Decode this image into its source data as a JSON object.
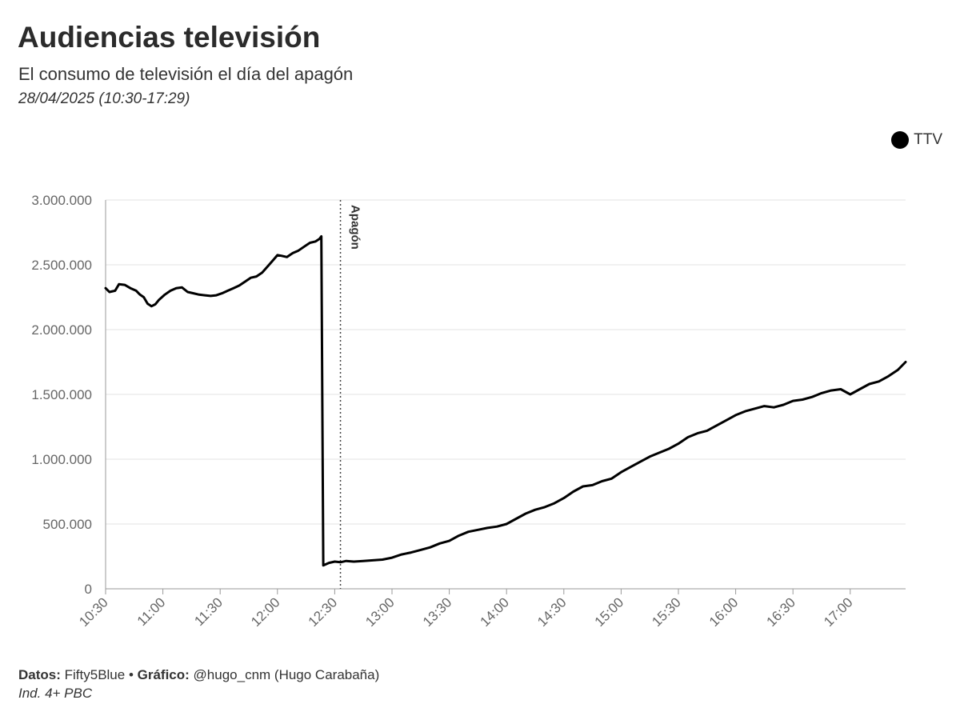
{
  "header": {
    "title": "Audiencias televisión",
    "subtitle": "El consumo de televisión el día del apagón",
    "date": "28/04/2025 (10:30-17:29)"
  },
  "legend": {
    "label": "TTV",
    "color": "#000000"
  },
  "footer": {
    "datos_label": "Datos:",
    "datos_value": " Fifty5Blue • ",
    "grafico_label": "Gráfico:",
    "grafico_value": " @hugo_cnm (Hugo Carabaña)",
    "note": "Ind. 4+ PBC"
  },
  "chart_data": {
    "type": "line",
    "title": "Audiencias televisión",
    "xlabel": "",
    "ylabel": "",
    "x_ticks": [
      "10:30",
      "11:00",
      "11:30",
      "12:00",
      "12:30",
      "13:00",
      "13:30",
      "14:00",
      "14:30",
      "15:00",
      "15:30",
      "16:00",
      "16:30",
      "17:00"
    ],
    "y_ticks": [
      "0",
      "500.000",
      "1.000.000",
      "1.500.000",
      "2.000.000",
      "2.500.000",
      "3.000.000"
    ],
    "xlim": [
      "10:30",
      "17:29"
    ],
    "ylim": [
      0,
      3000000
    ],
    "grid": "horizontal",
    "legend_position": "top-right",
    "annotation": {
      "label": "Apagón",
      "x": "12:33"
    },
    "series": [
      {
        "name": "TTV",
        "color": "#000000",
        "points": [
          [
            "10:30",
            2320000
          ],
          [
            "10:32",
            2290000
          ],
          [
            "10:35",
            2300000
          ],
          [
            "10:37",
            2350000
          ],
          [
            "10:40",
            2345000
          ],
          [
            "10:43",
            2320000
          ],
          [
            "10:46",
            2300000
          ],
          [
            "10:48",
            2270000
          ],
          [
            "10:50",
            2250000
          ],
          [
            "10:52",
            2200000
          ],
          [
            "10:54",
            2180000
          ],
          [
            "10:56",
            2195000
          ],
          [
            "10:58",
            2230000
          ],
          [
            "11:01",
            2270000
          ],
          [
            "11:04",
            2300000
          ],
          [
            "11:07",
            2320000
          ],
          [
            "11:10",
            2325000
          ],
          [
            "11:13",
            2290000
          ],
          [
            "11:16",
            2280000
          ],
          [
            "11:19",
            2270000
          ],
          [
            "11:22",
            2265000
          ],
          [
            "11:25",
            2260000
          ],
          [
            "11:28",
            2265000
          ],
          [
            "11:31",
            2280000
          ],
          [
            "11:34",
            2300000
          ],
          [
            "11:37",
            2320000
          ],
          [
            "11:40",
            2340000
          ],
          [
            "11:43",
            2370000
          ],
          [
            "11:46",
            2400000
          ],
          [
            "11:49",
            2410000
          ],
          [
            "11:52",
            2440000
          ],
          [
            "11:55",
            2490000
          ],
          [
            "11:58",
            2540000
          ],
          [
            "12:00",
            2575000
          ],
          [
            "12:02",
            2570000
          ],
          [
            "12:05",
            2560000
          ],
          [
            "12:08",
            2590000
          ],
          [
            "12:11",
            2610000
          ],
          [
            "12:14",
            2640000
          ],
          [
            "12:17",
            2670000
          ],
          [
            "12:20",
            2680000
          ],
          [
            "12:22",
            2700000
          ],
          [
            "12:23",
            2720000
          ],
          [
            "12:23",
            2700000
          ],
          [
            "12:24",
            180000
          ],
          [
            "12:27",
            200000
          ],
          [
            "12:30",
            210000
          ],
          [
            "12:33",
            205000
          ],
          [
            "12:36",
            215000
          ],
          [
            "12:40",
            210000
          ],
          [
            "12:45",
            215000
          ],
          [
            "12:50",
            220000
          ],
          [
            "12:55",
            225000
          ],
          [
            "13:00",
            240000
          ],
          [
            "13:05",
            265000
          ],
          [
            "13:10",
            280000
          ],
          [
            "13:15",
            300000
          ],
          [
            "13:20",
            320000
          ],
          [
            "13:25",
            350000
          ],
          [
            "13:30",
            370000
          ],
          [
            "13:35",
            410000
          ],
          [
            "13:40",
            440000
          ],
          [
            "13:45",
            455000
          ],
          [
            "13:50",
            470000
          ],
          [
            "13:55",
            480000
          ],
          [
            "14:00",
            500000
          ],
          [
            "14:05",
            540000
          ],
          [
            "14:10",
            580000
          ],
          [
            "14:15",
            610000
          ],
          [
            "14:20",
            630000
          ],
          [
            "14:25",
            660000
          ],
          [
            "14:30",
            700000
          ],
          [
            "14:35",
            750000
          ],
          [
            "14:40",
            790000
          ],
          [
            "14:45",
            800000
          ],
          [
            "14:50",
            830000
          ],
          [
            "14:55",
            850000
          ],
          [
            "15:00",
            900000
          ],
          [
            "15:05",
            940000
          ],
          [
            "15:10",
            980000
          ],
          [
            "15:15",
            1020000
          ],
          [
            "15:20",
            1050000
          ],
          [
            "15:25",
            1080000
          ],
          [
            "15:30",
            1120000
          ],
          [
            "15:35",
            1170000
          ],
          [
            "15:40",
            1200000
          ],
          [
            "15:45",
            1220000
          ],
          [
            "15:50",
            1260000
          ],
          [
            "15:55",
            1300000
          ],
          [
            "16:00",
            1340000
          ],
          [
            "16:05",
            1370000
          ],
          [
            "16:10",
            1390000
          ],
          [
            "16:15",
            1410000
          ],
          [
            "16:20",
            1400000
          ],
          [
            "16:25",
            1420000
          ],
          [
            "16:30",
            1450000
          ],
          [
            "16:35",
            1460000
          ],
          [
            "16:40",
            1480000
          ],
          [
            "16:45",
            1510000
          ],
          [
            "16:50",
            1530000
          ],
          [
            "16:55",
            1540000
          ],
          [
            "17:00",
            1500000
          ],
          [
            "17:05",
            1540000
          ],
          [
            "17:10",
            1580000
          ],
          [
            "17:15",
            1600000
          ],
          [
            "17:20",
            1640000
          ],
          [
            "17:25",
            1690000
          ],
          [
            "17:29",
            1750000
          ]
        ]
      }
    ]
  }
}
